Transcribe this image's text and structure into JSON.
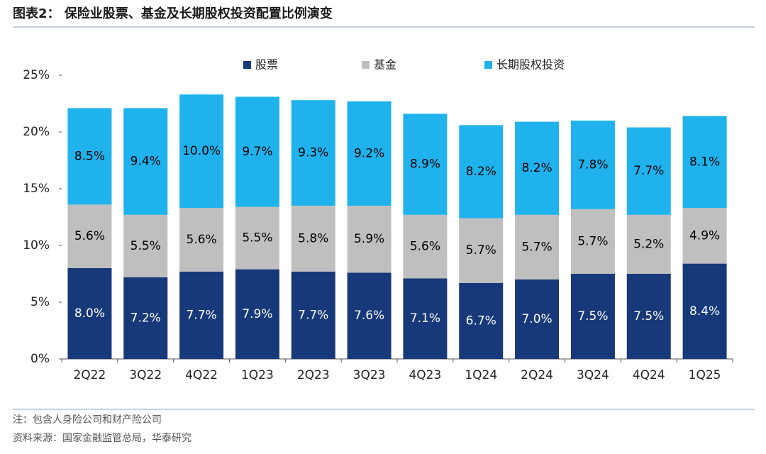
{
  "chart_data": {
    "type": "stacked_bar",
    "title": "图表2： 保险业股票、基金及长期股权投资配置比例演变",
    "categories": [
      "2Q22",
      "3Q22",
      "4Q22",
      "1Q23",
      "2Q23",
      "3Q23",
      "4Q23",
      "1Q24",
      "2Q24",
      "3Q24",
      "4Q24",
      "1Q25"
    ],
    "series": [
      {
        "name": "股票",
        "color": "#17397a",
        "label_color": "#ffffff",
        "values": [
          8.0,
          7.2,
          7.7,
          7.9,
          7.7,
          7.6,
          7.1,
          6.7,
          7.0,
          7.5,
          7.5,
          8.4
        ],
        "value_labels": [
          "8.0%",
          "7.2%",
          "7.7%",
          "7.9%",
          "7.7%",
          "7.6%",
          "7.1%",
          "6.7%",
          "7.0%",
          "7.5%",
          "7.5%",
          "8.4%"
        ]
      },
      {
        "name": "基金",
        "color": "#bfbfbf",
        "label_color": "#000000",
        "values": [
          5.6,
          5.5,
          5.6,
          5.5,
          5.8,
          5.9,
          5.6,
          5.7,
          5.7,
          5.7,
          5.2,
          4.9
        ],
        "value_labels": [
          "5.6%",
          "5.5%",
          "5.6%",
          "5.5%",
          "5.8%",
          "5.9%",
          "5.6%",
          "5.7%",
          "5.7%",
          "5.7%",
          "5.2%",
          "4.9%"
        ]
      },
      {
        "name": "长期股权投资",
        "color": "#1fb2ec",
        "label_color": "#000000",
        "values": [
          8.5,
          9.4,
          10.0,
          9.7,
          9.3,
          9.2,
          8.9,
          8.2,
          8.2,
          7.8,
          7.7,
          8.1
        ],
        "value_labels": [
          "8.5%",
          "9.4%",
          "10.0%",
          "9.7%",
          "9.3%",
          "9.2%",
          "8.9%",
          "8.2%",
          "8.2%",
          "7.8%",
          "7.7%",
          "8.1%"
        ]
      }
    ],
    "ylim": [
      0,
      25
    ],
    "yticks": [
      {
        "value": 0,
        "label": "0%"
      },
      {
        "value": 5,
        "label": "5%"
      },
      {
        "value": 10,
        "label": "10%"
      },
      {
        "value": 15,
        "label": "15%"
      },
      {
        "value": 20,
        "label": "20%"
      },
      {
        "value": 25,
        "label": "25%"
      }
    ],
    "grid": false,
    "legend": "top",
    "note": "注：包含人身险公司和财产险公司",
    "source": "资料来源：国家金融监管总局，华泰研究"
  }
}
